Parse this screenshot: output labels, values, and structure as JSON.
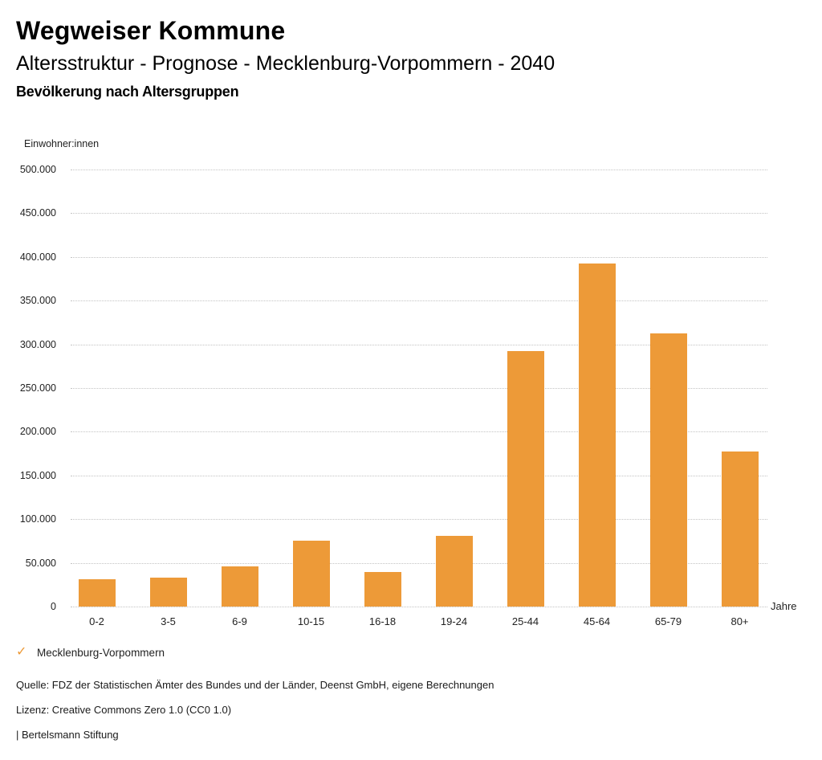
{
  "header": {
    "title": "Wegweiser Kommune",
    "subtitle": "Altersstruktur - Prognose - Mecklenburg-Vorpommern - 2040",
    "chart_heading": "Bevölkerung nach Altersgruppen"
  },
  "chart_data": {
    "type": "bar",
    "title": "Bevölkerung nach Altersgruppen",
    "ylabel": "Einwohner:innen",
    "xlabel": "Jahre",
    "categories": [
      "0-2",
      "3-5",
      "6-9",
      "10-15",
      "16-18",
      "19-24",
      "25-44",
      "45-64",
      "65-79",
      "80+"
    ],
    "values": [
      31000,
      33500,
      45500,
      75000,
      39500,
      80500,
      292500,
      392500,
      312500,
      177000
    ],
    "series_name": "Mecklenburg-Vorpommern",
    "ylim": [
      0,
      500000
    ],
    "y_ticks": [
      {
        "value": 0,
        "label": "0"
      },
      {
        "value": 50000,
        "label": "50.000"
      },
      {
        "value": 100000,
        "label": "100.000"
      },
      {
        "value": 150000,
        "label": "150.000"
      },
      {
        "value": 200000,
        "label": "200.000"
      },
      {
        "value": 250000,
        "label": "250.000"
      },
      {
        "value": 300000,
        "label": "300.000"
      },
      {
        "value": 350000,
        "label": "350.000"
      },
      {
        "value": 400000,
        "label": "400.000"
      },
      {
        "value": 450000,
        "label": "450.000"
      },
      {
        "value": 500000,
        "label": "500.000"
      }
    ],
    "grid": "horizontal-dotted",
    "legend_position": "bottom-left",
    "bar_color": "#ED9A38"
  },
  "legend": {
    "items": [
      {
        "icon": "check",
        "icon_char": "✓",
        "color": "#ED9A38",
        "label": "Mecklenburg-Vorpommern"
      }
    ]
  },
  "footer": {
    "source": "Quelle: FDZ der Statistischen Ämter des Bundes und der Länder, Deenst GmbH, eigene Berechnungen",
    "license": "Lizenz: Creative Commons Zero 1.0 (CC0 1.0)",
    "attribution": "| Bertelsmann Stiftung"
  },
  "colors": {
    "bar": "#ED9A38",
    "grid": "#c3c3c3",
    "text": "#1a1a1a",
    "background": "#ffffff"
  }
}
